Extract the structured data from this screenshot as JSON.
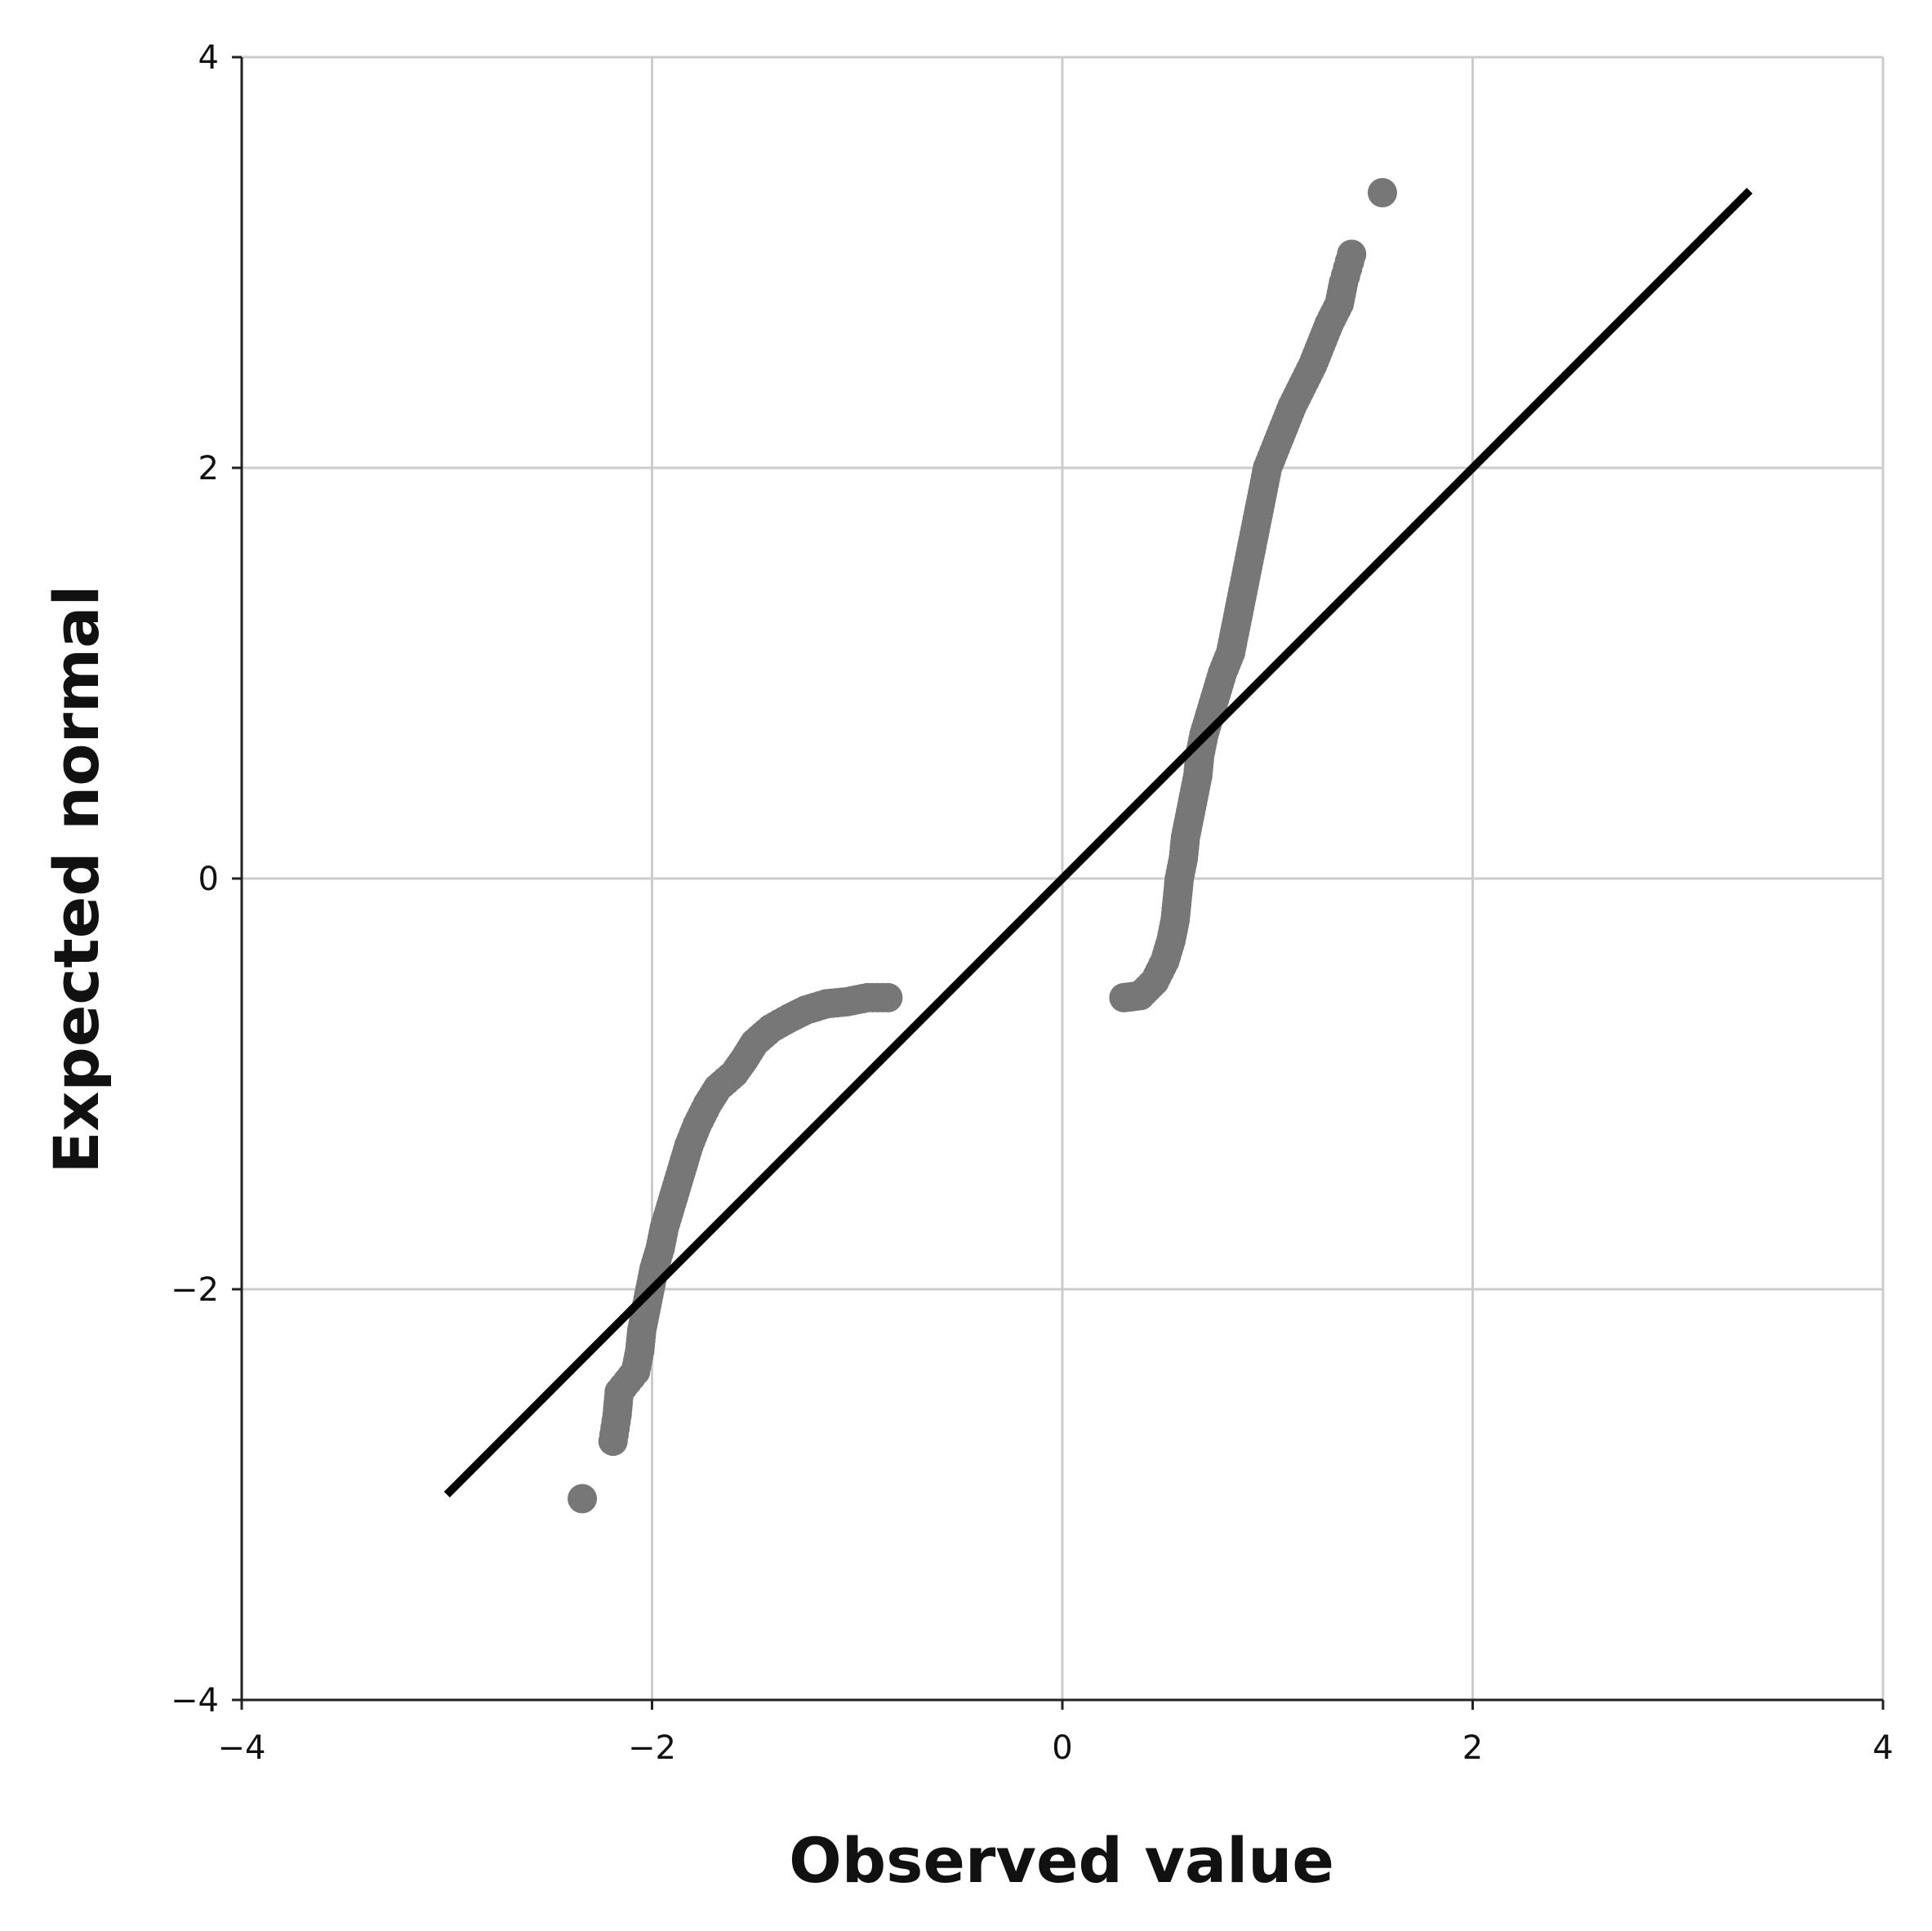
{
  "colors": {
    "background": "#ffffff",
    "grid": "#cccccc",
    "axis": "#222222",
    "points": "#777777",
    "reference_line": "#000000"
  },
  "chart_data": {
    "type": "scatter",
    "title": "",
    "xlabel": "Observed value",
    "ylabel": "Expected normal",
    "xlim": [
      -4,
      4
    ],
    "ylim": [
      -4,
      4
    ],
    "xticks": [
      -4,
      -2,
      0,
      2,
      4
    ],
    "yticks": [
      -4,
      -2,
      0,
      2,
      4
    ],
    "xtick_labels": [
      "−4",
      "−2",
      "0",
      "2",
      "4"
    ],
    "ytick_labels": [
      "−4",
      "−2",
      "0",
      "2",
      "4"
    ],
    "grid": true,
    "legend": "none",
    "reference_line": {
      "x": [
        -3.0,
        3.35
      ],
      "y": [
        -3.0,
        3.35
      ]
    },
    "series": [
      {
        "values_xy": [
          [
            -2.34,
            -3.02
          ],
          [
            -2.19,
            -2.74
          ],
          [
            -2.17,
            -2.61
          ],
          [
            -2.16,
            -2.5
          ],
          [
            -2.08,
            -2.4
          ],
          [
            -2.06,
            -2.3
          ],
          [
            -2.05,
            -2.2
          ],
          [
            -2.03,
            -2.1
          ],
          [
            -2.01,
            -2.0
          ],
          [
            -1.99,
            -1.9
          ],
          [
            -1.96,
            -1.8
          ],
          [
            -1.94,
            -1.7
          ],
          [
            -1.91,
            -1.6
          ],
          [
            -1.88,
            -1.5
          ],
          [
            -1.85,
            -1.4
          ],
          [
            -1.82,
            -1.3
          ],
          [
            -1.78,
            -1.2
          ],
          [
            -1.73,
            -1.1
          ],
          [
            -1.68,
            -1.02
          ],
          [
            -1.6,
            -0.95
          ],
          [
            -1.55,
            -0.88
          ],
          [
            -1.5,
            -0.8
          ],
          [
            -1.42,
            -0.73
          ],
          [
            -1.33,
            -0.68
          ],
          [
            -1.25,
            -0.64
          ],
          [
            -1.15,
            -0.61
          ],
          [
            -1.05,
            -0.6
          ],
          [
            -0.95,
            -0.58
          ],
          [
            -0.85,
            -0.58
          ],
          [
            0.3,
            -0.58
          ],
          [
            0.38,
            -0.57
          ],
          [
            0.45,
            -0.5
          ],
          [
            0.5,
            -0.4
          ],
          [
            0.53,
            -0.3
          ],
          [
            0.55,
            -0.2
          ],
          [
            0.56,
            -0.1
          ],
          [
            0.57,
            0.0
          ],
          [
            0.59,
            0.1
          ],
          [
            0.6,
            0.2
          ],
          [
            0.62,
            0.3
          ],
          [
            0.64,
            0.4
          ],
          [
            0.66,
            0.5
          ],
          [
            0.67,
            0.6
          ],
          [
            0.69,
            0.7
          ],
          [
            0.72,
            0.8
          ],
          [
            0.75,
            0.9
          ],
          [
            0.78,
            1.0
          ],
          [
            0.82,
            1.1
          ],
          [
            0.84,
            1.2
          ],
          [
            0.86,
            1.3
          ],
          [
            0.88,
            1.4
          ],
          [
            0.9,
            1.5
          ],
          [
            0.92,
            1.6
          ],
          [
            0.94,
            1.7
          ],
          [
            0.96,
            1.8
          ],
          [
            0.98,
            1.9
          ],
          [
            1.0,
            2.0
          ],
          [
            1.04,
            2.1
          ],
          [
            1.08,
            2.2
          ],
          [
            1.12,
            2.3
          ],
          [
            1.17,
            2.4
          ],
          [
            1.22,
            2.5
          ],
          [
            1.26,
            2.6
          ],
          [
            1.3,
            2.7
          ],
          [
            1.35,
            2.8
          ],
          [
            1.37,
            2.9
          ],
          [
            1.41,
            3.04
          ],
          [
            1.56,
            3.34
          ]
        ]
      }
    ]
  }
}
